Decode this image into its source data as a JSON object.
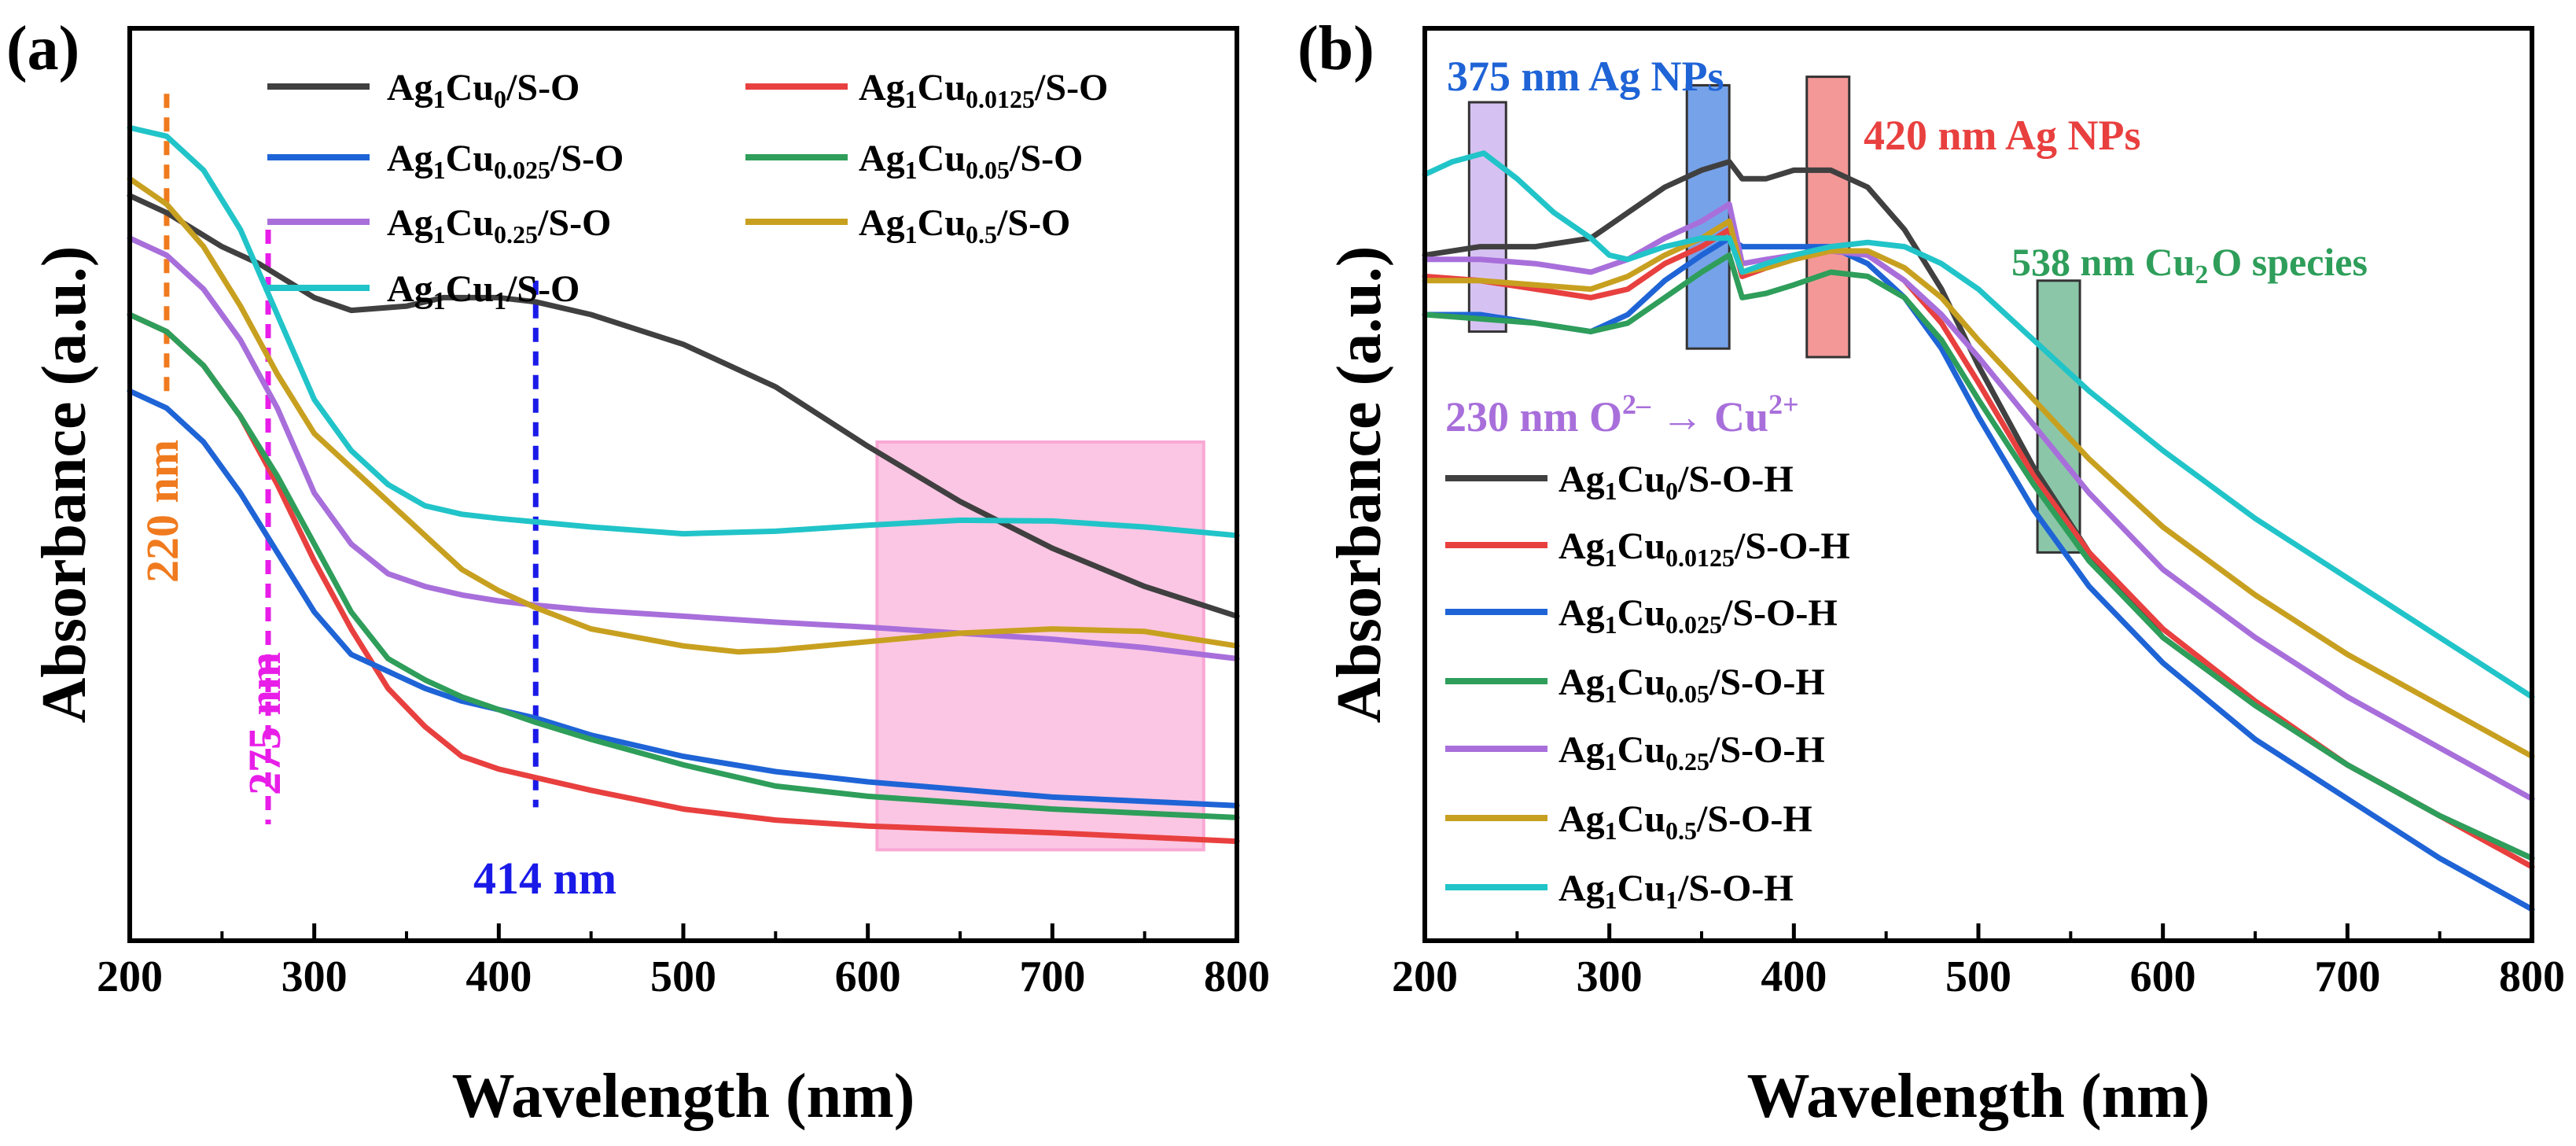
{
  "chart_data": [
    {
      "panel_label": "(a)",
      "type": "line",
      "xlabel": "Wavelength (nm)",
      "ylabel": "Absorbance (a.u.)",
      "xlim": [
        200,
        800
      ],
      "ylim": [
        0,
        1
      ],
      "xticks": [
        "200",
        "300",
        "400",
        "500",
        "600",
        "700",
        "800"
      ],
      "legend_position": "top",
      "series": [
        {
          "name_base": "Ag",
          "name_sub1": "1",
          "name_mid": "Cu",
          "name_sub2": "0",
          "name_suffix": "/S-O",
          "color": "#404040",
          "x": [
            200,
            220,
            250,
            270,
            300,
            320,
            350,
            370,
            400,
            420,
            450,
            500,
            550,
            600,
            650,
            700,
            750,
            800
          ],
          "y": [
            0.84,
            0.82,
            0.78,
            0.76,
            0.72,
            0.705,
            0.71,
            0.72,
            0.72,
            0.715,
            0.7,
            0.665,
            0.615,
            0.545,
            0.48,
            0.425,
            0.38,
            0.345
          ]
        },
        {
          "name_base": "Ag",
          "name_sub1": "1",
          "name_mid": "Cu",
          "name_sub2": "0.0125",
          "name_suffix": "/S-O",
          "color": "#e8403f",
          "x": [
            200,
            220,
            240,
            260,
            280,
            300,
            320,
            340,
            360,
            380,
            400,
            420,
            450,
            500,
            550,
            600,
            700,
            800
          ],
          "y": [
            0.7,
            0.68,
            0.64,
            0.58,
            0.5,
            0.41,
            0.33,
            0.26,
            0.215,
            0.18,
            0.165,
            0.155,
            0.14,
            0.118,
            0.105,
            0.098,
            0.09,
            0.08
          ]
        },
        {
          "name_base": "Ag",
          "name_sub1": "1",
          "name_mid": "Cu",
          "name_sub2": "0.025",
          "name_suffix": "/S-O",
          "color": "#1f64d6",
          "x": [
            200,
            220,
            240,
            260,
            280,
            300,
            320,
            340,
            360,
            380,
            400,
            420,
            450,
            500,
            550,
            600,
            700,
            800
          ],
          "y": [
            0.61,
            0.59,
            0.55,
            0.49,
            0.42,
            0.35,
            0.3,
            0.28,
            0.26,
            0.245,
            0.235,
            0.225,
            0.205,
            0.18,
            0.162,
            0.15,
            0.132,
            0.122
          ]
        },
        {
          "name_base": "Ag",
          "name_sub1": "1",
          "name_mid": "Cu",
          "name_sub2": "0.05",
          "name_suffix": "/S-O",
          "color": "#2e9e5a",
          "x": [
            200,
            220,
            240,
            260,
            280,
            300,
            320,
            340,
            360,
            380,
            400,
            420,
            450,
            500,
            550,
            600,
            700,
            800
          ],
          "y": [
            0.7,
            0.68,
            0.64,
            0.58,
            0.51,
            0.43,
            0.35,
            0.295,
            0.27,
            0.25,
            0.235,
            0.22,
            0.2,
            0.17,
            0.145,
            0.133,
            0.118,
            0.108
          ]
        },
        {
          "name_base": "Ag",
          "name_sub1": "1",
          "name_mid": "Cu",
          "name_sub2": "0.25",
          "name_suffix": "/S-O",
          "color": "#a86fdb",
          "x": [
            200,
            220,
            240,
            260,
            280,
            300,
            320,
            340,
            360,
            380,
            400,
            420,
            450,
            500,
            550,
            600,
            650,
            700,
            750,
            800
          ],
          "y": [
            0.79,
            0.77,
            0.73,
            0.67,
            0.59,
            0.49,
            0.43,
            0.395,
            0.38,
            0.37,
            0.363,
            0.358,
            0.352,
            0.345,
            0.338,
            0.332,
            0.325,
            0.318,
            0.308,
            0.295
          ]
        },
        {
          "name_base": "Ag",
          "name_sub1": "1",
          "name_mid": "Cu",
          "name_sub2": "0.5",
          "name_suffix": "/S-O",
          "color": "#c8a020",
          "x": [
            200,
            220,
            240,
            260,
            280,
            300,
            320,
            340,
            360,
            380,
            400,
            420,
            450,
            500,
            530,
            550,
            600,
            650,
            700,
            750,
            800
          ],
          "y": [
            0.86,
            0.83,
            0.78,
            0.71,
            0.63,
            0.56,
            0.52,
            0.48,
            0.44,
            0.4,
            0.375,
            0.355,
            0.33,
            0.31,
            0.303,
            0.305,
            0.315,
            0.325,
            0.33,
            0.327,
            0.31
          ]
        },
        {
          "name_base": "Ag",
          "name_sub1": "1",
          "name_mid": "Cu",
          "name_sub2": "1",
          "name_suffix": "/S-O",
          "color": "#21c4c8",
          "x": [
            200,
            220,
            240,
            260,
            280,
            300,
            320,
            340,
            360,
            380,
            400,
            450,
            500,
            550,
            600,
            650,
            700,
            750,
            800
          ],
          "y": [
            0.92,
            0.91,
            0.87,
            0.8,
            0.7,
            0.6,
            0.54,
            0.5,
            0.475,
            0.465,
            0.46,
            0.45,
            0.442,
            0.445,
            0.452,
            0.458,
            0.457,
            0.45,
            0.44
          ]
        }
      ],
      "markers": [
        {
          "x": 220,
          "label": "220 nm",
          "color": "#f07a1e"
        },
        {
          "x": 275,
          "label": "275 nm",
          "color": "#e81ee8"
        },
        {
          "x": 420,
          "label": "414 nm",
          "color": "#1a1ae8"
        }
      ],
      "highlight": {
        "x_from": 605,
        "x_to": 782,
        "y_from": 0.07,
        "y_to": 0.55,
        "color": "#f9a8d4"
      }
    },
    {
      "panel_label": "(b)",
      "type": "line",
      "xlabel": "Wavelength (nm)",
      "ylabel": "Absorbance (a.u.)",
      "xlim": [
        200,
        800
      ],
      "ylim": [
        0,
        1
      ],
      "xticks": [
        "200",
        "300",
        "400",
        "500",
        "600",
        "700",
        "800"
      ],
      "legend_position": "bottom-left",
      "series": [
        {
          "name_base": "Ag",
          "name_sub1": "1",
          "name_mid": "Cu",
          "name_sub2": "0",
          "name_suffix": "/S-O-H",
          "color": "#404040",
          "x": [
            200,
            230,
            260,
            290,
            310,
            330,
            350,
            365,
            372,
            385,
            400,
            420,
            440,
            460,
            480,
            500,
            530,
            560,
            600,
            650,
            700,
            750,
            800
          ],
          "y": [
            0.77,
            0.78,
            0.78,
            0.79,
            0.82,
            0.85,
            0.87,
            0.88,
            0.86,
            0.86,
            0.87,
            0.87,
            0.85,
            0.8,
            0.73,
            0.64,
            0.52,
            0.42,
            0.32,
            0.24,
            0.17,
            0.11,
            0.06
          ]
        },
        {
          "name_base": "Ag",
          "name_sub1": "1",
          "name_mid": "Cu",
          "name_sub2": "0.0125",
          "name_suffix": "/S-O-H",
          "color": "#e8403f",
          "x": [
            200,
            230,
            260,
            290,
            310,
            330,
            350,
            365,
            372,
            385,
            400,
            420,
            440,
            460,
            480,
            500,
            530,
            560,
            600,
            650,
            700,
            750,
            800
          ],
          "y": [
            0.745,
            0.74,
            0.73,
            0.72,
            0.73,
            0.76,
            0.78,
            0.8,
            0.745,
            0.755,
            0.765,
            0.775,
            0.77,
            0.74,
            0.69,
            0.62,
            0.51,
            0.42,
            0.33,
            0.245,
            0.17,
            0.11,
            0.05
          ]
        },
        {
          "name_base": "Ag",
          "name_sub1": "1",
          "name_mid": "Cu",
          "name_sub2": "0.025",
          "name_suffix": "/S-O-H",
          "color": "#1f64d6",
          "x": [
            200,
            230,
            260,
            290,
            310,
            330,
            350,
            365,
            372,
            385,
            400,
            420,
            440,
            460,
            480,
            500,
            530,
            560,
            600,
            650,
            700,
            750,
            800
          ],
          "y": [
            0.7,
            0.7,
            0.69,
            0.68,
            0.7,
            0.74,
            0.77,
            0.79,
            0.78,
            0.78,
            0.78,
            0.78,
            0.76,
            0.72,
            0.66,
            0.58,
            0.47,
            0.38,
            0.29,
            0.2,
            0.13,
            0.06,
            0.0
          ]
        },
        {
          "name_base": "Ag",
          "name_sub1": "1",
          "name_mid": "Cu",
          "name_sub2": "0.05",
          "name_suffix": "/S-O-H",
          "color": "#2e9e5a",
          "x": [
            200,
            230,
            260,
            290,
            310,
            330,
            350,
            365,
            372,
            385,
            400,
            420,
            440,
            460,
            480,
            500,
            530,
            560,
            600,
            650,
            700,
            750,
            800
          ],
          "y": [
            0.7,
            0.695,
            0.69,
            0.68,
            0.69,
            0.72,
            0.75,
            0.77,
            0.72,
            0.725,
            0.735,
            0.75,
            0.745,
            0.72,
            0.67,
            0.6,
            0.5,
            0.41,
            0.32,
            0.24,
            0.17,
            0.11,
            0.06
          ]
        },
        {
          "name_base": "Ag",
          "name_sub1": "1",
          "name_mid": "Cu",
          "name_sub2": "0.25",
          "name_suffix": "/S-O-H",
          "color": "#a86fdb",
          "x": [
            200,
            230,
            260,
            290,
            310,
            330,
            350,
            365,
            372,
            385,
            400,
            420,
            440,
            460,
            480,
            500,
            530,
            560,
            600,
            650,
            700,
            750,
            800
          ],
          "y": [
            0.765,
            0.765,
            0.76,
            0.75,
            0.765,
            0.79,
            0.81,
            0.83,
            0.76,
            0.765,
            0.77,
            0.775,
            0.77,
            0.74,
            0.7,
            0.65,
            0.57,
            0.49,
            0.4,
            0.32,
            0.25,
            0.19,
            0.13
          ]
        },
        {
          "name_base": "Ag",
          "name_sub1": "1",
          "name_mid": "Cu",
          "name_sub2": "0.5",
          "name_suffix": "/S-O-H",
          "color": "#c8a020",
          "x": [
            200,
            230,
            260,
            290,
            310,
            330,
            350,
            365,
            372,
            385,
            400,
            420,
            440,
            460,
            480,
            500,
            530,
            560,
            600,
            650,
            700,
            750,
            800
          ],
          "y": [
            0.74,
            0.74,
            0.735,
            0.73,
            0.745,
            0.77,
            0.79,
            0.81,
            0.75,
            0.755,
            0.765,
            0.775,
            0.775,
            0.755,
            0.72,
            0.67,
            0.6,
            0.53,
            0.45,
            0.37,
            0.3,
            0.24,
            0.18
          ]
        },
        {
          "name_base": "Ag",
          "name_sub1": "1",
          "name_mid": "Cu",
          "name_sub2": "1",
          "name_suffix": "/S-O-H",
          "color": "#21c4c8",
          "x": [
            200,
            215,
            232,
            250,
            270,
            290,
            300,
            310,
            330,
            350,
            365,
            372,
            385,
            400,
            420,
            440,
            460,
            480,
            500,
            530,
            560,
            600,
            650,
            700,
            750,
            800
          ],
          "y": [
            0.865,
            0.88,
            0.89,
            0.86,
            0.82,
            0.79,
            0.77,
            0.765,
            0.78,
            0.79,
            0.79,
            0.75,
            0.76,
            0.77,
            0.78,
            0.785,
            0.78,
            0.76,
            0.73,
            0.67,
            0.61,
            0.54,
            0.46,
            0.39,
            0.32,
            0.25
          ]
        }
      ],
      "bands": [
        {
          "x_from": 224,
          "x_to": 244,
          "y_from": 0.68,
          "y_to": 0.95,
          "color": "#c4a8ec",
          "label_num": "230 nm O",
          "label_sup1": "2–",
          "label_arrow": " → Cu",
          "label_sup2": "2+",
          "label_color": "#a86fdb"
        },
        {
          "x_from": 342,
          "x_to": 365,
          "y_from": 0.66,
          "y_to": 0.97,
          "color": "#3c7be0",
          "label": "375 nm Ag NPs",
          "label_color": "#1f64d6"
        },
        {
          "x_from": 407,
          "x_to": 430,
          "y_from": 0.65,
          "y_to": 0.98,
          "color": "#ef6b6b",
          "label": "420 nm Ag NPs",
          "label_color": "#e8403f"
        },
        {
          "x_from": 532,
          "x_to": 555,
          "y_from": 0.42,
          "y_to": 0.74,
          "color": "#5aae83",
          "label_num": "538 nm Cu",
          "label_sub": "2",
          "label_tail": "O species",
          "label_color": "#2e9e5a"
        }
      ]
    }
  ]
}
